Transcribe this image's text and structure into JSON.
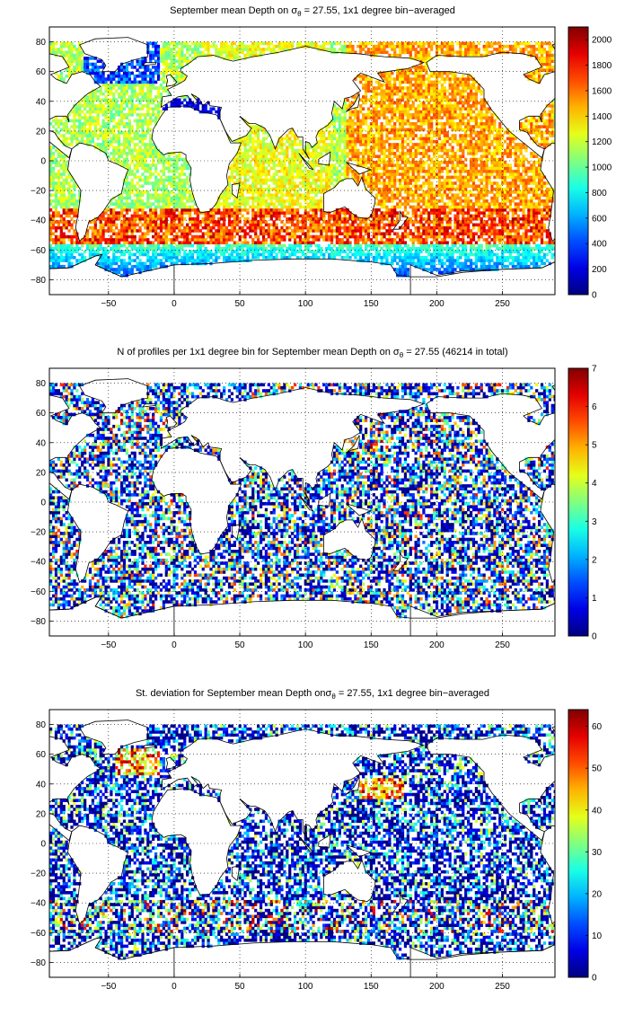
{
  "chart_data": [
    {
      "type": "heatmap",
      "title_before": "September mean Depth on ",
      "title_symbol": "σ",
      "title_sub": "θ",
      "title_after": " = 27.55, 1x1 degree bin−averaged",
      "x_ticks": [
        "−50",
        "0",
        "50",
        "100",
        "150",
        "200",
        "250"
      ],
      "x_tick_values": [
        -50,
        0,
        50,
        100,
        150,
        200,
        250
      ],
      "y_ticks": [
        "80",
        "60",
        "40",
        "20",
        "0",
        "−20",
        "−40",
        "−60",
        "−80"
      ],
      "y_tick_values": [
        80,
        60,
        40,
        20,
        0,
        -20,
        -40,
        -60,
        -80
      ],
      "xlim": [
        -95,
        290
      ],
      "ylim": [
        -90,
        90
      ],
      "colorbar_ticks": [
        "2000",
        "1800",
        "1600",
        "1400",
        "1200",
        "1000",
        "800",
        "600",
        "400",
        "200",
        "0"
      ],
      "colorbar_values": [
        2000,
        1800,
        1600,
        1400,
        1200,
        1000,
        800,
        600,
        400,
        200,
        0
      ],
      "colorbar_range": [
        0,
        2100
      ],
      "grid": true,
      "colormap": "jet",
      "field": "depth"
    },
    {
      "type": "heatmap",
      "title_before": "N of profiles per 1x1 degree bin for September mean Depth on ",
      "title_symbol": "σ",
      "title_sub": "θ",
      "title_after": " = 27.55 (46214 in total)",
      "x_ticks": [
        "−50",
        "0",
        "50",
        "100",
        "150",
        "200",
        "250"
      ],
      "x_tick_values": [
        -50,
        0,
        50,
        100,
        150,
        200,
        250
      ],
      "y_ticks": [
        "80",
        "60",
        "40",
        "20",
        "0",
        "−20",
        "−40",
        "−60",
        "−80"
      ],
      "y_tick_values": [
        80,
        60,
        40,
        20,
        0,
        -20,
        -40,
        -60,
        -80
      ],
      "xlim": [
        -95,
        290
      ],
      "ylim": [
        -90,
        90
      ],
      "colorbar_ticks": [
        "7",
        "6",
        "5",
        "4",
        "3",
        "2",
        "1",
        "0"
      ],
      "colorbar_values": [
        7,
        6,
        5,
        4,
        3,
        2,
        1,
        0
      ],
      "colorbar_range": [
        0,
        7
      ],
      "grid": true,
      "colormap": "jet",
      "field": "count"
    },
    {
      "type": "heatmap",
      "title_before": "St. deviation for September mean Depth on",
      "title_symbol": "σ",
      "title_sub": "θ",
      "title_after": " = 27.55, 1x1 degree bin−averaged",
      "x_ticks": [
        "−50",
        "0",
        "50",
        "100",
        "150",
        "200",
        "250"
      ],
      "x_tick_values": [
        -50,
        0,
        50,
        100,
        150,
        200,
        250
      ],
      "y_ticks": [
        "80",
        "60",
        "40",
        "20",
        "0",
        "−20",
        "−40",
        "−60",
        "−80"
      ],
      "y_tick_values": [
        80,
        60,
        40,
        20,
        0,
        -20,
        -40,
        -60,
        -80
      ],
      "xlim": [
        -95,
        290
      ],
      "ylim": [
        -90,
        90
      ],
      "colorbar_ticks": [
        "60",
        "50",
        "40",
        "30",
        "20",
        "10",
        "0"
      ],
      "colorbar_values": [
        60,
        50,
        40,
        30,
        20,
        10,
        0
      ],
      "colorbar_range": [
        0,
        64
      ],
      "grid": true,
      "colormap": "jet",
      "field": "stdev"
    }
  ]
}
